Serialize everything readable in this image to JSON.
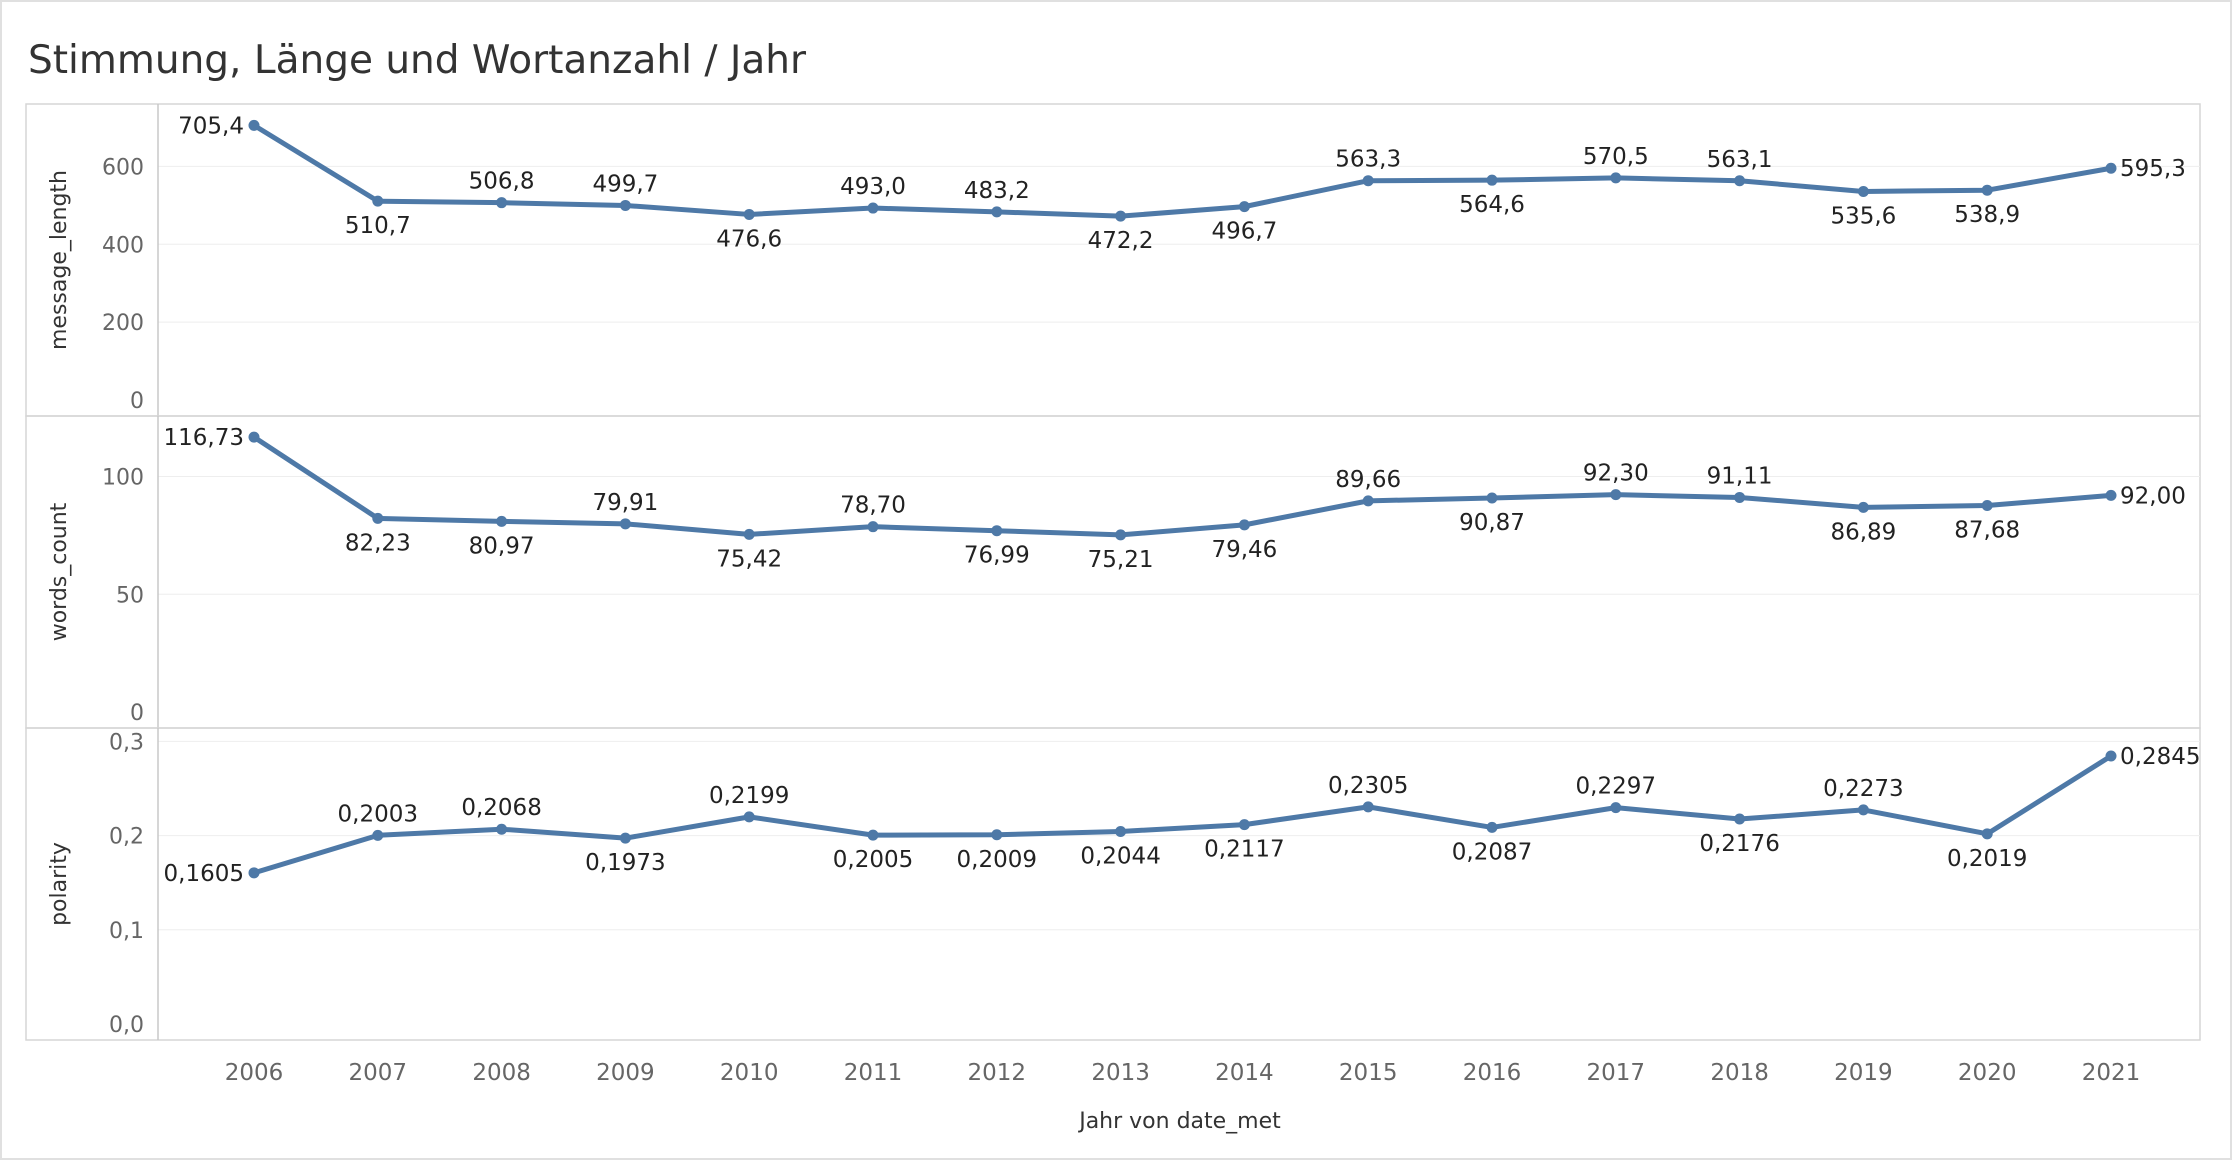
{
  "title": "Stimmung, Länge und Wortanzahl / Jahr",
  "colors": {
    "series": "#4e79a7"
  },
  "chart_data": [
    {
      "type": "line",
      "ylabel": "message_length",
      "ylim": [
        0,
        750
      ],
      "yticks": [
        0,
        200,
        400,
        600
      ],
      "ytick_labels": [
        "0",
        "200",
        "400",
        "600"
      ],
      "x": [
        "2006",
        "2007",
        "2008",
        "2009",
        "2010",
        "2011",
        "2012",
        "2013",
        "2014",
        "2015",
        "2016",
        "2017",
        "2018",
        "2019",
        "2020",
        "2021"
      ],
      "values": [
        705.4,
        510.7,
        506.8,
        499.7,
        476.6,
        493.0,
        483.2,
        472.2,
        496.7,
        563.3,
        564.6,
        570.5,
        563.1,
        535.6,
        538.9,
        595.3
      ],
      "labels": [
        "705,4",
        "510,7",
        "506,8",
        "499,7",
        "476,6",
        "493,0",
        "483,2",
        "472,2",
        "496,7",
        "563,3",
        "564,6",
        "570,5",
        "563,1",
        "535,6",
        "538,9",
        "595,3"
      ],
      "label_pos": [
        "left",
        "below",
        "above",
        "above",
        "below",
        "above",
        "above",
        "below",
        "below",
        "above",
        "below",
        "above",
        "above",
        "below",
        "below",
        "right"
      ]
    },
    {
      "type": "line",
      "ylabel": "words_count",
      "ylim": [
        0,
        124
      ],
      "yticks": [
        0,
        50,
        100
      ],
      "ytick_labels": [
        "0",
        "50",
        "100"
      ],
      "x": [
        "2006",
        "2007",
        "2008",
        "2009",
        "2010",
        "2011",
        "2012",
        "2013",
        "2014",
        "2015",
        "2016",
        "2017",
        "2018",
        "2019",
        "2020",
        "2021"
      ],
      "values": [
        116.73,
        82.23,
        80.97,
        79.91,
        75.42,
        78.7,
        76.99,
        75.21,
        79.46,
        89.66,
        90.87,
        92.3,
        91.11,
        86.89,
        87.68,
        92.0
      ],
      "labels": [
        "116,73",
        "82,23",
        "80,97",
        "79,91",
        "75,42",
        "78,70",
        "76,99",
        "75,21",
        "79,46",
        "89,66",
        "90,87",
        "92,30",
        "91,11",
        "86,89",
        "87,68",
        "92,00"
      ],
      "label_pos": [
        "left",
        "below",
        "below",
        "above",
        "below",
        "above",
        "below",
        "below",
        "below",
        "above",
        "below",
        "above",
        "above",
        "below",
        "below",
        "right"
      ]
    },
    {
      "type": "line",
      "ylabel": "polarity",
      "ylim": [
        0,
        0.31
      ],
      "yticks": [
        0,
        0.1,
        0.2,
        0.3
      ],
      "ytick_labels": [
        "0,0",
        "0,1",
        "0,2",
        "0,3"
      ],
      "x": [
        "2006",
        "2007",
        "2008",
        "2009",
        "2010",
        "2011",
        "2012",
        "2013",
        "2014",
        "2015",
        "2016",
        "2017",
        "2018",
        "2019",
        "2020",
        "2021"
      ],
      "values": [
        0.1605,
        0.2003,
        0.2068,
        0.1973,
        0.2199,
        0.2005,
        0.2009,
        0.2044,
        0.2117,
        0.2305,
        0.2087,
        0.2297,
        0.2176,
        0.2273,
        0.2019,
        0.2845
      ],
      "labels": [
        "0,1605",
        "0,2003",
        "0,2068",
        "0,1973",
        "0,2199",
        "0,2005",
        "0,2009",
        "0,2044",
        "0,2117",
        "0,2305",
        "0,2087",
        "0,2297",
        "0,2176",
        "0,2273",
        "0,2019",
        "0,2845"
      ],
      "label_pos": [
        "left",
        "above",
        "above",
        "below",
        "above",
        "below",
        "below",
        "below",
        "below",
        "above",
        "below",
        "above",
        "below",
        "above",
        "below",
        "right"
      ]
    }
  ],
  "xaxis": {
    "title": "Jahr von date_met",
    "ticks": [
      "2006",
      "2007",
      "2008",
      "2009",
      "2010",
      "2011",
      "2012",
      "2013",
      "2014",
      "2015",
      "2016",
      "2017",
      "2018",
      "2019",
      "2020",
      "2021"
    ]
  }
}
